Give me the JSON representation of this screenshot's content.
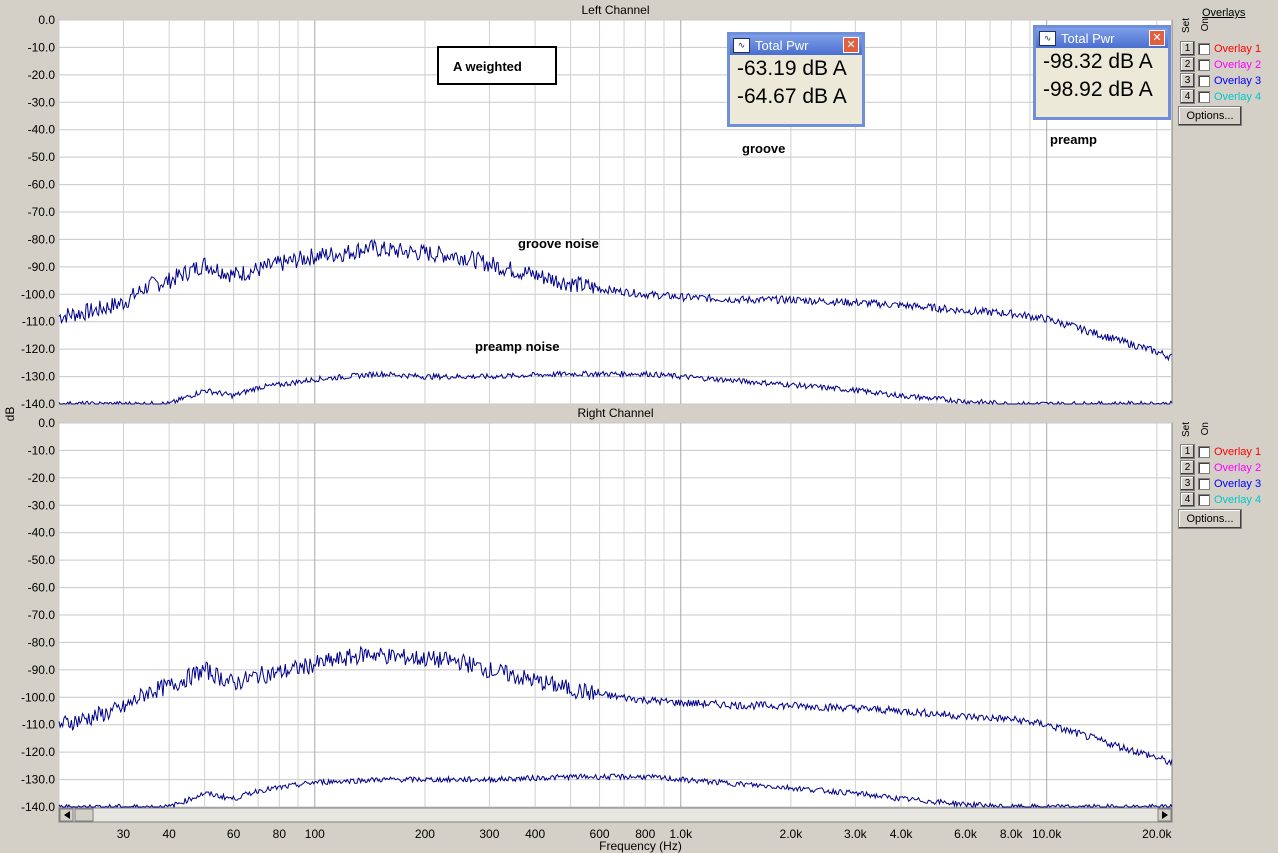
{
  "panels": [
    {
      "title": "Left Channel"
    },
    {
      "title": "Right Channel"
    }
  ],
  "ylabel": "dB",
  "xlabel": "Frequency (Hz)",
  "y_ticks": [
    "0.0",
    "-10.0",
    "-20.0",
    "-30.0",
    "-40.0",
    "-50.0",
    "-60.0",
    "-70.0",
    "-80.0",
    "-90.0",
    "-100.0",
    "-110.0",
    "-120.0",
    "-130.0",
    "-140.0"
  ],
  "x_ticks": [
    {
      "v": 30,
      "label": "30"
    },
    {
      "v": 40,
      "label": "40"
    },
    {
      "v": 60,
      "label": "60"
    },
    {
      "v": 80,
      "label": "80"
    },
    {
      "v": 100,
      "label": "100"
    },
    {
      "v": 200,
      "label": "200"
    },
    {
      "v": 300,
      "label": "300"
    },
    {
      "v": 400,
      "label": "400"
    },
    {
      "v": 600,
      "label": "600"
    },
    {
      "v": 800,
      "label": "800"
    },
    {
      "v": 1000,
      "label": "1.0k"
    },
    {
      "v": 2000,
      "label": "2.0k"
    },
    {
      "v": 3000,
      "label": "3.0k"
    },
    {
      "v": 4000,
      "label": "4.0k"
    },
    {
      "v": 6000,
      "label": "6.0k"
    },
    {
      "v": 8000,
      "label": "8.0k"
    },
    {
      "v": 10000,
      "label": "10.0k"
    },
    {
      "v": 20000,
      "label": "20.0k"
    }
  ],
  "annotations": {
    "a_weighted": "A weighted",
    "groove": "groove",
    "preamp": "preamp",
    "groove_noise": "groove noise",
    "preamp_noise": "preamp noise"
  },
  "total_pwr": [
    {
      "title": "Total Pwr",
      "values": [
        "-63.19 dB A",
        "-64.67 dB A"
      ]
    },
    {
      "title": "Total Pwr",
      "values": [
        "-98.32 dB A",
        "-98.92 dB A"
      ]
    }
  ],
  "overlays": {
    "header": "Overlays",
    "set_label": "Set",
    "on_label": "On",
    "items": [
      {
        "num": "1",
        "label": "Overlay 1",
        "color": "#ff0000"
      },
      {
        "num": "2",
        "label": "Overlay 2",
        "color": "#ff00ff"
      },
      {
        "num": "3",
        "label": "Overlay 3",
        "color": "#0000ff"
      },
      {
        "num": "4",
        "label": "Overlay 4",
        "color": "#00e0e0"
      }
    ],
    "options_label": "Options..."
  },
  "chart_data": {
    "type": "line",
    "x_scale": "log",
    "xlim": [
      20,
      22000
    ],
    "ylim": [
      -140,
      0
    ],
    "grid": true,
    "line_color": "#00008b",
    "channels": [
      {
        "series": [
          {
            "x": [
              20,
              25,
              30,
              35,
              40,
              50,
              60,
              70,
              80,
              100,
              120,
              140,
              160,
              200,
              250,
              300,
              400,
              500,
              600,
              800,
              1000,
              1500,
              2000,
              3000,
              4000,
              5000,
              6000,
              8000,
              10000,
              12000,
              15000,
              20000,
              22000
            ],
            "y": [
              -108,
              -106,
              -103,
              -97,
              -95,
              -89,
              -93,
              -91,
              -89,
              -86,
              -85,
              -83,
              -84,
              -85,
              -86,
              -89,
              -93,
              -96,
              -98,
              -100,
              -101,
              -102,
              -102,
              -103,
              -104,
              -105,
              -106,
              -107,
              -109,
              -112,
              -116,
              -121,
              -123
            ]
          },
          {
            "x": [
              20,
              40,
              50,
              60,
              70,
              80,
              100,
              150,
              200,
              300,
              500,
              800,
              1000,
              2000,
              3000,
              4000,
              6000,
              8000,
              10000,
              22000
            ],
            "y": [
              -140,
              -140,
              -135,
              -137,
              -134,
              -133,
              -131,
              -129,
              -130,
              -130,
              -129,
              -129,
              -130,
              -133,
              -135,
              -137,
              -139,
              -140,
              -140,
              -140
            ]
          }
        ]
      },
      {
        "series": [
          {
            "x": [
              20,
              25,
              30,
              35,
              40,
              50,
              60,
              70,
              80,
              100,
              120,
              140,
              160,
              200,
              250,
              300,
              400,
              500,
              600,
              800,
              1000,
              1500,
              2000,
              3000,
              4000,
              5000,
              6000,
              8000,
              10000,
              12000,
              15000,
              20000,
              22000
            ],
            "y": [
              -110,
              -107,
              -104,
              -98,
              -96,
              -90,
              -95,
              -92,
              -91,
              -88,
              -86,
              -84,
              -85,
              -86,
              -87,
              -90,
              -94,
              -97,
              -99,
              -101,
              -102,
              -103,
              -103,
              -104,
              -105,
              -106,
              -107,
              -108,
              -110,
              -113,
              -117,
              -122,
              -124
            ]
          },
          {
            "x": [
              20,
              40,
              50,
              60,
              70,
              80,
              100,
              150,
              200,
              300,
              500,
              800,
              1000,
              2000,
              3000,
              4000,
              6000,
              8000,
              10000,
              22000
            ],
            "y": [
              -140,
              -140,
              -135,
              -137,
              -134,
              -133,
              -131,
              -130,
              -130,
              -130,
              -129,
              -129,
              -130,
              -133,
              -135,
              -137,
              -139,
              -140,
              -140,
              -140
            ]
          }
        ]
      }
    ]
  }
}
